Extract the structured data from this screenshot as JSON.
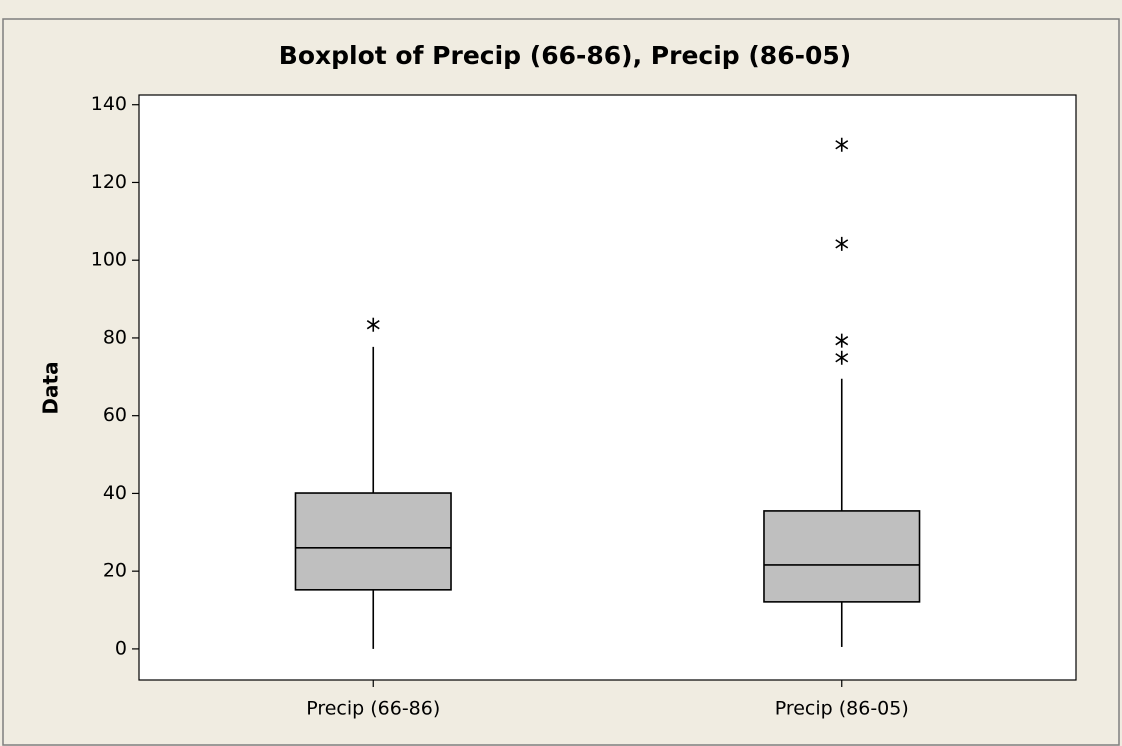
{
  "chart_data": {
    "type": "box",
    "title": "Boxplot of Precip (66-86), Precip (86-05)",
    "y_label": "Data",
    "categories": [
      "Precip (66-86)",
      "Precip (86-05)"
    ],
    "boxes": [
      {
        "min": 0,
        "q1": 15.2,
        "median": 26,
        "q3": 40.1,
        "max": 77.7,
        "outliers": [
          83.4
        ]
      },
      {
        "min": 0.5,
        "q1": 12.1,
        "median": 21.6,
        "q3": 35.5,
        "max": 69.5,
        "outliers": [
          129.7,
          104.2,
          79.3,
          74.9
        ]
      }
    ],
    "color": "#bfbfbf",
    "ylim": [
      -8,
      142.5
    ],
    "yticks": [
      0,
      20,
      40,
      60,
      80,
      100,
      120,
      140
    ]
  }
}
